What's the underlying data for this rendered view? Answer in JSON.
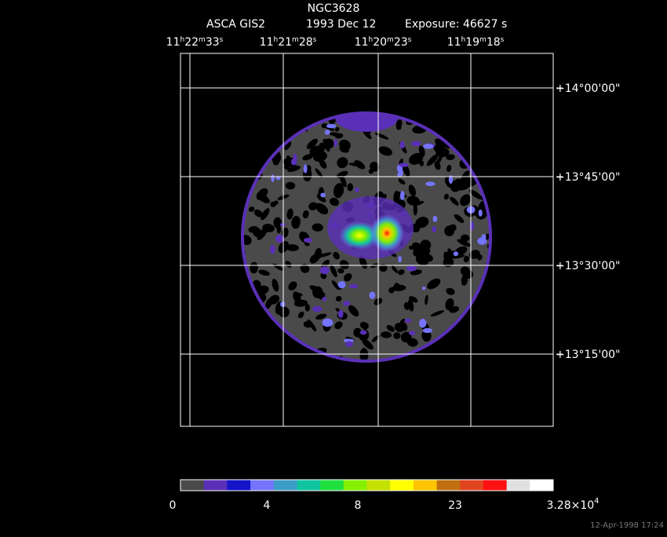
{
  "header": {
    "title": "NGC3628",
    "instrument": "ASCA GIS2",
    "date": "1993 Dec 12",
    "exposure": "Exposure: 46627 s"
  },
  "ra_labels": [
    [
      "11",
      "h",
      "22",
      "m",
      "33",
      "s"
    ],
    [
      "11",
      "h",
      "21",
      "m",
      "28",
      "s"
    ],
    [
      "11",
      "h",
      "20",
      "m",
      "23",
      "s"
    ],
    [
      "11",
      "h",
      "19",
      "m",
      "18",
      "s"
    ]
  ],
  "dec_labels": [
    "+14°00'00\"",
    "+13°45'00\"",
    "+13°30'00\"",
    "+13°15'00\""
  ],
  "colorbar": {
    "colors": [
      "#4a4a4a",
      "#5a30b8",
      "#1414c8",
      "#7474ff",
      "#3c9cc8",
      "#10c4a0",
      "#20e040",
      "#84f000",
      "#c4e000",
      "#ffff00",
      "#ffc400",
      "#c07010",
      "#e04420",
      "#ff1010",
      "#e0e0e0",
      "#ffffff"
    ],
    "labels": [
      "0",
      "4",
      "8",
      "23"
    ],
    "max_label": "3.28×10",
    "max_exponent": "4"
  },
  "footer": "12-Apr-1998 17:24"
}
